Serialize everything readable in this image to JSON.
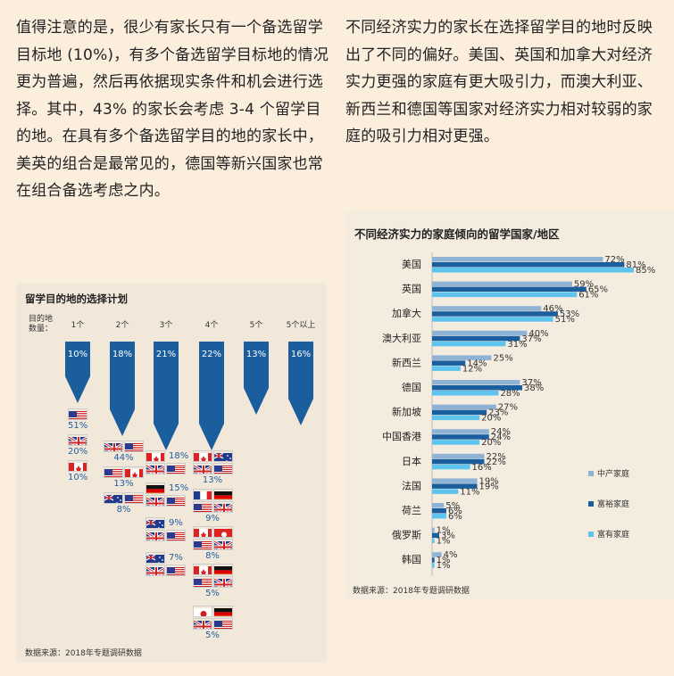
{
  "text": {
    "left_paragraph": "值得注意的是，很少有家长只有一个备选留学目标地 (10%)，有多个备选留学目标地的情况更为普遍，然后再依据现实条件和机会进行选择。其中，43% 的家长会考虑 3-4 个留学目的地。在具有多个备选留学目的地的家长中，美英的组合是最常见的，德国等新兴国家也常在组合备选考虑之内。",
    "right_paragraph": "不同经济实力的家长在选择留学目的地时反映出了不同的偏好。美国、英国和加拿大对经济实力更强的家庭有更大吸引力，而澳大利亚、新西兰和德国等国家对经济实力相对较弱的家庭的吸引力相对更强。"
  },
  "left_chart": {
    "title": "留学目的地的选择计划",
    "row_label_line1": "目的地",
    "row_label_line2": "数量：",
    "source": "数据来源：2018年专题调研数据",
    "columns": [
      {
        "label": "1个",
        "pct": "10%"
      },
      {
        "label": "2个",
        "pct": "18%"
      },
      {
        "label": "3个",
        "pct": "21%"
      },
      {
        "label": "4个",
        "pct": "22%"
      },
      {
        "label": "5个",
        "pct": "13%"
      },
      {
        "label": "5个以上",
        "pct": "16%"
      }
    ],
    "combos_1": [
      {
        "flags": [
          "us"
        ],
        "pct": "51%"
      },
      {
        "flags": [
          "uk"
        ],
        "pct": "20%"
      },
      {
        "flags": [
          "ca"
        ],
        "pct": "10%"
      }
    ],
    "combos_2": [
      {
        "flags": [
          "uk",
          "us"
        ],
        "pct": "44%"
      },
      {
        "flags": [
          "us",
          "ca"
        ],
        "pct": "13%"
      },
      {
        "flags": [
          "au",
          "us"
        ],
        "pct": "8%"
      }
    ],
    "combos_3": [
      {
        "flags": [
          "ca",
          "uk",
          "us"
        ],
        "pct": "18%"
      },
      {
        "flags": [
          "de",
          "uk",
          "us"
        ],
        "pct": "15%"
      },
      {
        "flags": [
          "au",
          "uk",
          "us"
        ],
        "pct": "9%"
      },
      {
        "flags": [
          "au",
          "uk",
          "us"
        ],
        "pct": "7%"
      }
    ],
    "combos_4": [
      {
        "flags": [
          "ca",
          "au",
          "uk",
          "us"
        ],
        "pct": "13%"
      },
      {
        "flags": [
          "fr",
          "de",
          "us",
          "uk"
        ],
        "pct": "9%"
      },
      {
        "flags": [
          "ca",
          "hk",
          "us",
          "uk"
        ],
        "pct": "8%"
      },
      {
        "flags": [
          "ca",
          "de",
          "us",
          "uk"
        ],
        "pct": "5%"
      },
      {
        "flags": [
          "jp",
          "de",
          "uk",
          "us"
        ],
        "pct": "5%"
      }
    ]
  },
  "chart_data": {
    "type": "bar",
    "orientation": "horizontal",
    "title": "不同经济实力的家庭倾向的留学国家/地区",
    "source": "数据来源：2018年专题调研数据",
    "categories": [
      "美国",
      "英国",
      "加拿大",
      "澳大利亚",
      "新西兰",
      "德国",
      "新加坡",
      "中国香港",
      "日本",
      "法国",
      "荷兰",
      "俄罗斯",
      "韩国"
    ],
    "series": [
      {
        "name": "中产家庭",
        "color": "#8fb3d4",
        "values": [
          72,
          59,
          46,
          40,
          25,
          37,
          27,
          24,
          22,
          19,
          5,
          1,
          4
        ]
      },
      {
        "name": "富裕家庭",
        "color": "#1a5e9e",
        "values": [
          81,
          65,
          53,
          37,
          14,
          38,
          23,
          24,
          22,
          19,
          6,
          3,
          1
        ]
      },
      {
        "name": "富有家庭",
        "color": "#5ec4ee",
        "values": [
          85,
          61,
          51,
          31,
          12,
          28,
          20,
          20,
          16,
          11,
          6,
          1,
          1
        ]
      }
    ],
    "labels": [
      [
        "72%",
        "81%",
        "85%"
      ],
      [
        "59%",
        "65%",
        "61%"
      ],
      [
        "46%",
        "53%",
        "51%"
      ],
      [
        "40%",
        "37%",
        "31%"
      ],
      [
        "25%",
        "14%",
        "12%"
      ],
      [
        "37%",
        "38%",
        "28%"
      ],
      [
        "27%",
        "23%",
        "20%"
      ],
      [
        "24%",
        "24%",
        "20%"
      ],
      [
        "22%",
        "22%",
        "16%"
      ],
      [
        "19%",
        "19%",
        "11%"
      ],
      [
        "5%",
        "6%",
        "6%"
      ],
      [
        "1%",
        "3%",
        "1%"
      ],
      [
        "4%",
        "1%",
        "1%"
      ]
    ],
    "xlim": [
      0,
      90
    ],
    "legend_position": "bottom-right",
    "grid": false
  },
  "colors": {
    "page_bg": "#fbeedd",
    "arrow_blue": "#1a5e9e",
    "pct_blue": "#1f5fa0"
  }
}
